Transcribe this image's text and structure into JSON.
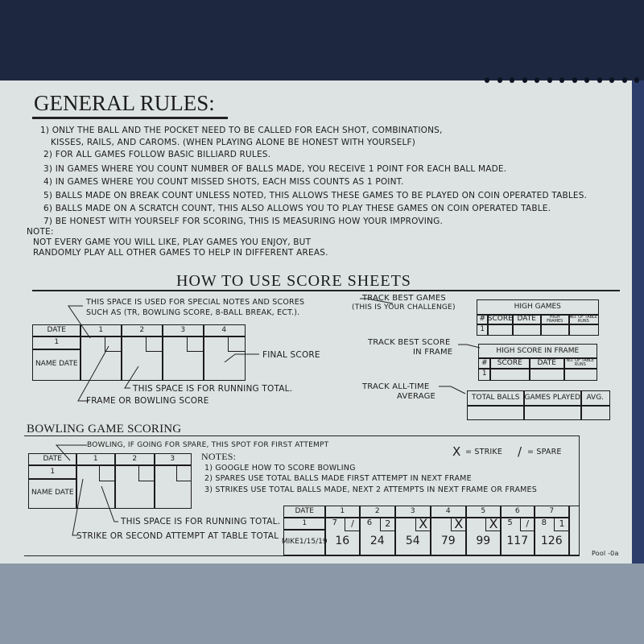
{
  "general_rules": {
    "title": "GENERAL RULES:",
    "rules": [
      "1) ONLY THE BALL AND THE POCKET NEED TO BE CALLED FOR EACH SHOT, COMBINATIONS,",
      "KISSES, RAILS, AND CAROMS. (WHEN PLAYING ALONE BE HONEST WITH YOURSELF)",
      "2) FOR ALL GAMES FOLLOW BASIC BILLIARD RULES.",
      "3) IN GAMES WHERE YOU COUNT NUMBER OF BALLS MADE, YOU RECEIVE 1 POINT FOR EACH BALL MADE.",
      "4) IN GAMES WHERE YOU COUNT MISSED SHOTS, EACH MISS COUNTS AS 1 POINT.",
      "5) BALLS MADE ON BREAK COUNT UNLESS NOTED, THIS ALLOWS THESE GAMES TO BE PLAYED ON COIN OPERATED TABLES.",
      "6) BALLS MADE ON A SCRATCH COUNT, THIS ALSO ALLOWS YOU TO PLAY THESE GAMES ON COIN OPERATED TABLE.",
      "7) BE HONEST WITH YOURSELF FOR SCORING, THIS IS MEASURING HOW YOUR IMPROVING."
    ],
    "note_label": "NOTE:",
    "note_lines": [
      "NOT EVERY GAME YOU WILL LIKE, PLAY GAMES YOU ENJOY, BUT",
      "RANDOMLY PLAY ALL OTHER GAMES TO HELP IN DIFFERENT AREAS."
    ]
  },
  "how_to": {
    "title": "HOW TO USE SCORE SHEETS",
    "special_notes": [
      "THIS SPACE IS USED FOR SPECIAL NOTES AND SCORES",
      "SUCH AS (TR, BOWLING SCORE, 8-BALL BREAK, ECT.)."
    ],
    "final_score": "FINAL SCORE",
    "running_total": "THIS SPACE IS FOR RUNNING TOTAL.",
    "frame_score": "FRAME OR BOWLING SCORE",
    "sheet": {
      "date": "DATE",
      "num": "1",
      "name_date": "NAME DATE",
      "frames": [
        "1",
        "2",
        "3",
        "4"
      ]
    },
    "best_games_label": [
      "TRACK BEST GAMES",
      "(THIS IS YOUR CHALLENGE)"
    ],
    "high_games": {
      "title": "HIGH GAMES",
      "headers": [
        "#",
        "SCORE",
        "DATE",
        "HIGH FRAMES",
        "NO. OF TABLE RUNS"
      ],
      "row_num": "1"
    },
    "best_score_label": [
      "TRACK BEST SCORE",
      "IN FRAME"
    ],
    "high_score_frame": {
      "title": "HIGH SCORE IN FRAME",
      "headers": [
        "#",
        "SCORE",
        "DATE",
        "NO. OF TABLE RUNS"
      ],
      "row_num": "1"
    },
    "average_label": [
      "TRACK ALL-TIME",
      "AVERAGE"
    ],
    "average": {
      "headers": [
        "TOTAL BALLS",
        "GAMES PLAYED",
        "AVG."
      ]
    }
  },
  "bowling": {
    "title": "BOWLING GAME SCORING",
    "first_attempt": "BOWLING, IF GOING FOR SPARE, THIS SPOT FOR FIRST ATTEMPT",
    "sheet": {
      "date": "DATE",
      "num": "1",
      "name_date": "NAME DATE",
      "frames": [
        "1",
        "2",
        "3"
      ]
    },
    "notes_title": "NOTES:",
    "notes": [
      "1) GOOGLE HOW TO SCORE BOWLING",
      "2) SPARES USE TOTAL BALLS MADE FIRST ATTEMPT IN NEXT FRAME",
      "3) STRIKES USE TOTAL BALLS MADE, NEXT 2 ATTEMPTS IN NEXT FRAME OR FRAMES"
    ],
    "legend": {
      "strike_symbol": "X",
      "strike": "= STRIKE",
      "spare_symbol": "/",
      "spare": "= SPARE"
    },
    "running_total": "THIS SPACE IS FOR RUNNING TOTAL.",
    "strike_second": "STRIKE OR SECOND ATTEMPT AT TABLE TOTAL",
    "example": {
      "date": "DATE",
      "num": "1",
      "name": "MIKE",
      "game_date": "1/15/19",
      "frames": [
        {
          "frame": "1",
          "first": "7",
          "second": "/",
          "total": "16"
        },
        {
          "frame": "2",
          "first": "6",
          "second": "2",
          "total": "24"
        },
        {
          "frame": "3",
          "first": "",
          "second": "X",
          "total": "54"
        },
        {
          "frame": "4",
          "first": "",
          "second": "X",
          "total": "79"
        },
        {
          "frame": "5",
          "first": "",
          "second": "X",
          "total": "99"
        },
        {
          "frame": "6",
          "first": "5",
          "second": "/",
          "total": "117"
        },
        {
          "frame": "7",
          "first": "8",
          "second": "1",
          "total": "126"
        }
      ]
    }
  },
  "footer": {
    "page_code": "Pool -0a"
  }
}
